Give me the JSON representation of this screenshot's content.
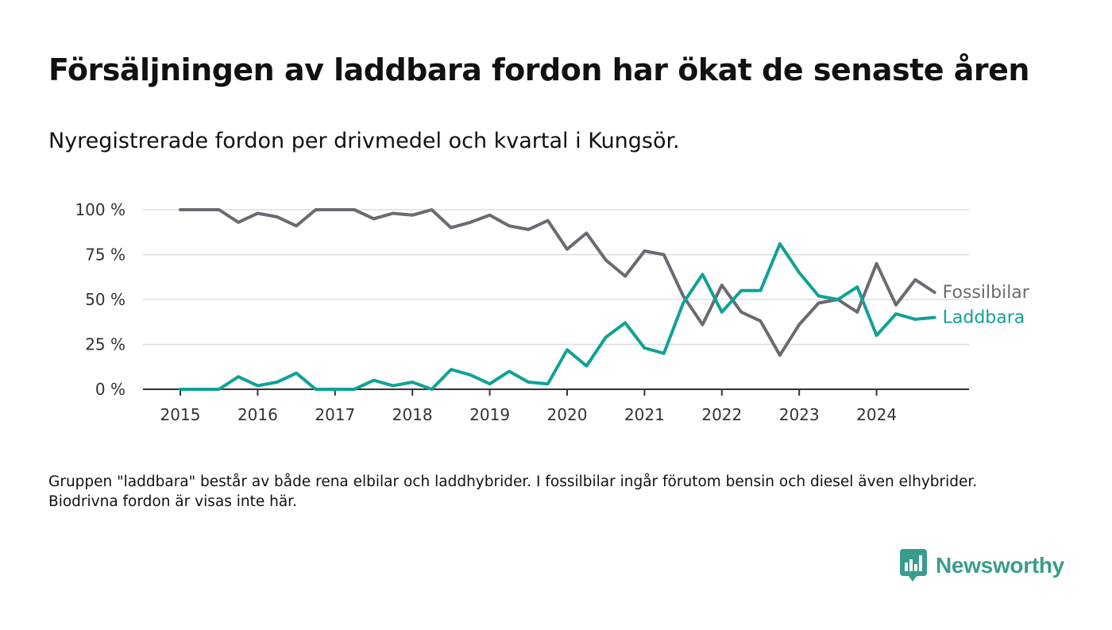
{
  "header": {
    "title": "Försäljningen av laddbara fordon har ökat de senaste åren",
    "subtitle": "Nyregistrerade fordon per drivmedel och kvartal i Kungsör."
  },
  "footnote": "Gruppen \"laddbara\" består av både rena elbilar och laddhybrider. I fossilbilar ingår förutom bensin och diesel även elhybrider. Biodrivna fordon är visas inte här.",
  "brand": {
    "name": "Newsworthy",
    "color": "#3a9c8c",
    "icon": "bar-chart-speech-bubble-icon"
  },
  "chart_data": {
    "type": "line",
    "x_label": "",
    "y_label": "",
    "ylim": [
      0,
      100
    ],
    "y_ticks": [
      0,
      25,
      50,
      75,
      100
    ],
    "y_tick_labels": [
      "0 %",
      "25 %",
      "50 %",
      "75 %",
      "100 %"
    ],
    "x_ticks": [
      "2015",
      "2016",
      "2017",
      "2018",
      "2019",
      "2020",
      "2021",
      "2022",
      "2023",
      "2024"
    ],
    "x": [
      "2015Q1",
      "2015Q2",
      "2015Q3",
      "2015Q4",
      "2016Q1",
      "2016Q2",
      "2016Q3",
      "2016Q4",
      "2017Q1",
      "2017Q2",
      "2017Q3",
      "2017Q4",
      "2018Q1",
      "2018Q2",
      "2018Q3",
      "2018Q4",
      "2019Q1",
      "2019Q2",
      "2019Q3",
      "2019Q4",
      "2020Q1",
      "2020Q2",
      "2020Q3",
      "2020Q4",
      "2021Q1",
      "2021Q2",
      "2021Q3",
      "2021Q4",
      "2022Q1",
      "2022Q2",
      "2022Q3",
      "2022Q4",
      "2023Q1",
      "2023Q2",
      "2023Q3",
      "2023Q4",
      "2024Q1",
      "2024Q2",
      "2024Q3",
      "2024Q4"
    ],
    "grid": true,
    "legend": "direct labels at line ends",
    "series": [
      {
        "name": "Fossilbilar",
        "color": "#6b6a72",
        "values": [
          100,
          100,
          100,
          93,
          98,
          96,
          91,
          100,
          100,
          100,
          95,
          98,
          97,
          100,
          90,
          93,
          97,
          91,
          89,
          94,
          78,
          87,
          72,
          63,
          77,
          75,
          52,
          36,
          58,
          43,
          38,
          19,
          36,
          48,
          50,
          43,
          70,
          47,
          61,
          54
        ]
      },
      {
        "name": "Laddbara",
        "color": "#0fa296",
        "values": [
          0,
          0,
          0,
          7,
          2,
          4,
          9,
          0,
          0,
          0,
          5,
          2,
          4,
          0,
          11,
          8,
          3,
          10,
          4,
          3,
          22,
          13,
          29,
          37,
          23,
          20,
          48,
          64,
          43,
          55,
          55,
          81,
          65,
          52,
          50,
          57,
          30,
          42,
          39,
          40
        ]
      }
    ]
  }
}
